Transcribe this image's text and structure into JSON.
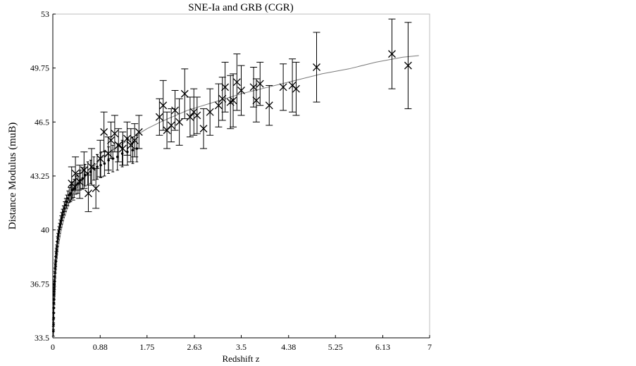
{
  "chart_data": {
    "type": "scatter",
    "title": "SNE-Ia and GRB (CGR)",
    "xlabel": "Redshift z",
    "ylabel": "Distance Modulus (muB)",
    "xlim": [
      0,
      7
    ],
    "ylim": [
      33.5,
      53
    ],
    "x_ticks": [
      "0",
      "0.88",
      "1.75",
      "2.63",
      "3.5",
      "4.38",
      "5.25",
      "6.13",
      "7"
    ],
    "y_ticks": [
      "33.5",
      "36.75",
      "40",
      "43.25",
      "46.5",
      "49.75",
      "53"
    ],
    "grid": false,
    "legend": "none",
    "marker_colors": {
      "sne": "#000000",
      "grb": "#000000",
      "fit": "#7a7a7a"
    },
    "series": [
      {
        "marker": "dot",
        "x": [
          0.01,
          0.012,
          0.014,
          0.016,
          0.018,
          0.02,
          0.022,
          0.024,
          0.026,
          0.028,
          0.03,
          0.033,
          0.036,
          0.04,
          0.044,
          0.048,
          0.053,
          0.058,
          0.064,
          0.07,
          0.077,
          0.085,
          0.093,
          0.102,
          0.112,
          0.123,
          0.135,
          0.148,
          0.162,
          0.178,
          0.195,
          0.213,
          0.233,
          0.255,
          0.279,
          0.305,
          0.333,
          0.363,
          0.395,
          0.43,
          0.468,
          0.508,
          0.552,
          0.599,
          0.65,
          0.704,
          0.762,
          0.824,
          0.89,
          0.96,
          1.035,
          1.115,
          1.2,
          1.29,
          1.385,
          1.485,
          1.56
        ],
        "y": [
          33.9,
          34.3,
          34.7,
          35.0,
          35.3,
          35.6,
          35.8,
          36.1,
          36.3,
          36.5,
          36.7,
          36.9,
          37.2,
          37.4,
          37.7,
          37.9,
          38.1,
          38.4,
          38.6,
          38.8,
          39.0,
          39.3,
          39.5,
          39.7,
          39.9,
          40.1,
          40.3,
          40.5,
          40.7,
          40.9,
          41.1,
          41.3,
          41.5,
          41.7,
          41.9,
          42.1,
          42.2,
          42.4,
          42.5,
          42.7,
          42.8,
          43.0,
          43.1,
          43.3,
          43.4,
          43.5,
          43.7,
          43.8,
          43.9,
          44.0,
          44.2,
          44.3,
          44.4,
          44.6,
          44.7,
          44.8,
          44.9
        ],
        "err": [
          0.3,
          0.3,
          0.3,
          0.3,
          0.3,
          0.3,
          0.3,
          0.3,
          0.3,
          0.3,
          0.3,
          0.3,
          0.3,
          0.3,
          0.3,
          0.3,
          0.3,
          0.3,
          0.3,
          0.3,
          0.3,
          0.3,
          0.3,
          0.3,
          0.3,
          0.3,
          0.3,
          0.35,
          0.35,
          0.35,
          0.35,
          0.4,
          0.4,
          0.4,
          0.45,
          0.45,
          0.5,
          0.5,
          0.55,
          0.55,
          0.6,
          0.6,
          0.65,
          0.65,
          0.7,
          0.7,
          0.7,
          0.75,
          0.75,
          0.75,
          0.8,
          0.8,
          0.8,
          0.8,
          0.8,
          0.8,
          0.8
        ]
      },
      {
        "marker": "x",
        "x": [
          0.35,
          0.42,
          0.5,
          0.58,
          0.66,
          0.72,
          0.8,
          0.88,
          0.95,
          1.03,
          1.08,
          1.15,
          1.22,
          1.3,
          1.38,
          1.45,
          1.52,
          1.6,
          1.98,
          2.05,
          2.12,
          2.2,
          2.27,
          2.35,
          2.45,
          2.55,
          2.62,
          2.68,
          2.8,
          2.92,
          3.08,
          3.15,
          3.2,
          3.3,
          3.35,
          3.42,
          3.5,
          3.73,
          3.78,
          3.85,
          4.02,
          4.28,
          4.45,
          4.52,
          4.9,
          6.3,
          6.6
        ],
        "y": [
          42.8,
          43.4,
          42.9,
          43.6,
          42.2,
          43.8,
          42.5,
          44.3,
          45.9,
          44.6,
          45.4,
          45.8,
          45.1,
          44.9,
          45.5,
          45.1,
          45.4,
          45.9,
          46.8,
          47.5,
          46.0,
          46.3,
          47.2,
          46.5,
          48.2,
          46.8,
          47.1,
          46.9,
          46.1,
          47.1,
          47.5,
          47.9,
          48.6,
          47.7,
          47.8,
          48.9,
          48.4,
          48.6,
          47.8,
          48.8,
          47.5,
          48.6,
          48.7,
          48.5,
          49.8,
          50.6,
          49.9
        ],
        "err": [
          1.0,
          1.0,
          1.0,
          1.1,
          1.1,
          1.1,
          1.2,
          1.1,
          1.2,
          1.0,
          1.1,
          1.1,
          1.0,
          1.0,
          1.0,
          1.0,
          1.0,
          1.0,
          1.1,
          1.5,
          1.1,
          1.0,
          1.2,
          1.4,
          1.5,
          1.2,
          1.4,
          1.1,
          1.2,
          1.4,
          1.3,
          1.3,
          1.5,
          1.6,
          1.6,
          1.7,
          1.5,
          1.2,
          1.3,
          1.3,
          1.2,
          1.4,
          1.6,
          1.6,
          2.1,
          2.1,
          2.6
        ]
      }
    ],
    "fit_curve": {
      "x": [
        0.01,
        0.02,
        0.04,
        0.07,
        0.1,
        0.15,
        0.2,
        0.3,
        0.4,
        0.5,
        0.7,
        0.9,
        1.1,
        1.3,
        1.5,
        1.75,
        2.0,
        2.5,
        3.0,
        3.5,
        4.0,
        4.5,
        5.0,
        5.5,
        6.0,
        6.5,
        6.8
      ],
      "y": [
        33.6,
        35.2,
        36.8,
        38.0,
        38.9,
        39.9,
        40.6,
        41.6,
        42.3,
        42.8,
        43.6,
        44.3,
        44.8,
        45.2,
        45.6,
        46.1,
        46.5,
        47.2,
        47.7,
        48.2,
        48.6,
        49.0,
        49.4,
        49.7,
        50.1,
        50.4,
        50.5
      ]
    }
  }
}
